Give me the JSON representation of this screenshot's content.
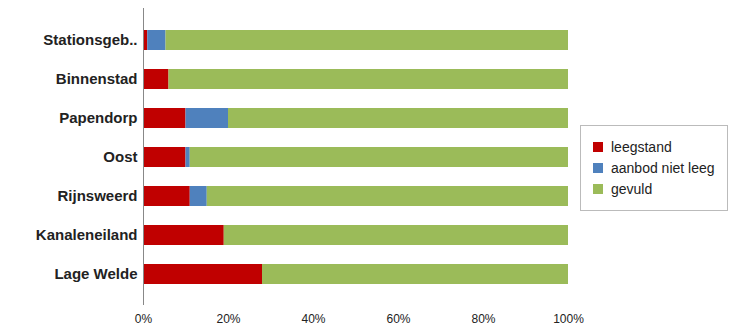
{
  "chart_data": {
    "type": "bar",
    "orientation": "horizontal",
    "stacked": true,
    "categories": [
      "Stationsgeb..",
      "Binnenstad",
      "Papendorp",
      "Oost",
      "Rijnsweerd",
      "Kanaleneiland",
      "Lage Welde"
    ],
    "series": [
      {
        "name": "leegstand",
        "color": "#c00000",
        "values": [
          1,
          6,
          10,
          10,
          11,
          19,
          28
        ]
      },
      {
        "name": "aanbod niet leeg",
        "color": "#4f81bd",
        "values": [
          4.3,
          0,
          10,
          1,
          4,
          0,
          0
        ]
      },
      {
        "name": "gevuld",
        "color": "#9bbb59",
        "values": [
          94.7,
          94,
          80,
          89,
          85,
          81,
          72
        ]
      }
    ],
    "xlim": [
      0,
      100
    ],
    "xticks": [
      {
        "value": 0,
        "label": "0%"
      },
      {
        "value": 20,
        "label": "20%"
      },
      {
        "value": 40,
        "label": "40%"
      },
      {
        "value": 60,
        "label": "60%"
      },
      {
        "value": 80,
        "label": "80%"
      },
      {
        "value": 100,
        "label": "100%"
      }
    ],
    "legend": "right",
    "grid": false
  }
}
